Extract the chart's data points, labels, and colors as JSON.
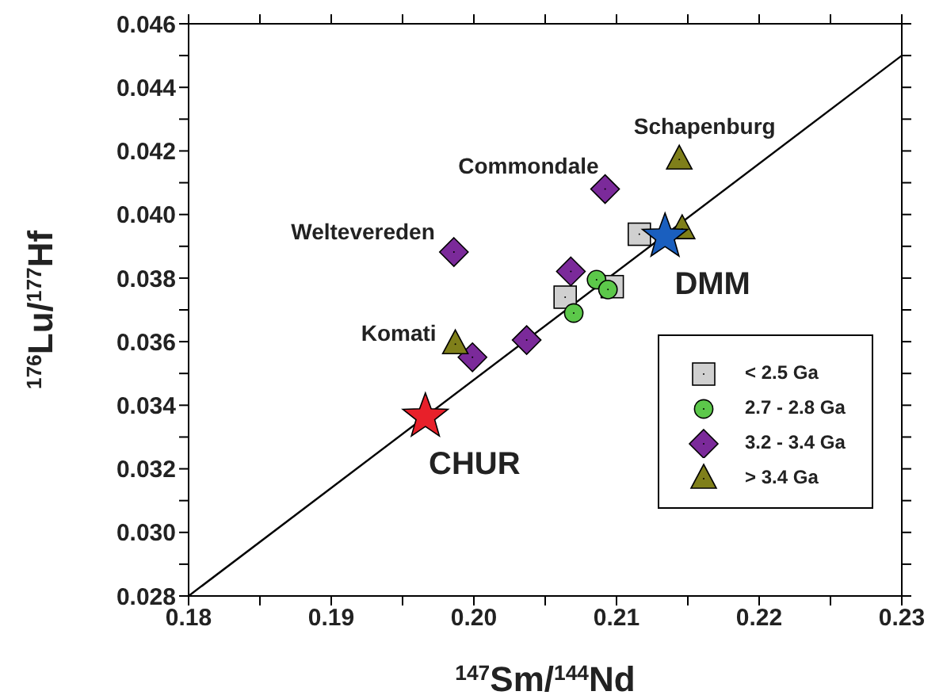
{
  "chart_data": {
    "type": "scatter",
    "xlabel": "$^{147}$Sm/$^{144}$Nd",
    "ylabel": "$^{176}$Lu/$^{177}$Hf",
    "xlim": [
      0.18,
      0.23
    ],
    "ylim": [
      0.028,
      0.046
    ],
    "xticks": [
      0.18,
      {
        "value": 0.185,
        "label": null
      },
      0.19,
      {
        "value": 0.195,
        "label": null
      },
      {
        "value": 0.2,
        "label": "0.20"
      },
      {
        "value": 0.205,
        "label": null
      },
      0.21,
      {
        "value": 0.215,
        "label": null
      },
      0.22,
      {
        "value": 0.225,
        "label": null
      },
      0.23
    ],
    "yticks": [
      0.028,
      {
        "value": 0.029,
        "label": null
      },
      {
        "value": 0.03,
        "label": "0.030"
      },
      {
        "value": 0.031,
        "label": null
      },
      0.032,
      {
        "value": 0.033,
        "label": null
      },
      0.034,
      {
        "value": 0.035,
        "label": null
      },
      0.036,
      {
        "value": 0.037,
        "label": null
      },
      0.038,
      {
        "value": 0.039,
        "label": null
      },
      {
        "value": 0.04,
        "label": "0.040"
      },
      {
        "value": 0.041,
        "label": null
      },
      0.042,
      {
        "value": 0.043,
        "label": null
      },
      0.044,
      {
        "value": 0.045,
        "label": null
      },
      0.046
    ],
    "grid": false,
    "legend": "bottom right",
    "series": [
      {
        "type": "line",
        "color": "#000000",
        "marker": "none",
        "x": [
          0.18,
          0.23
        ],
        "values": [
          0.028,
          0.045
        ]
      },
      {
        "name": "< 2.5 Ga",
        "marker": "square",
        "color": "#d0d0d0",
        "x": [
          0.2116,
          0.2064,
          0.2097
        ],
        "values": [
          0.03938,
          0.0374,
          0.03773
        ]
      },
      {
        "name": "2.7 - 2.8 Ga",
        "marker": "circle",
        "color": "#5cc84a",
        "x": [
          0.2086,
          0.2094,
          0.207
        ],
        "values": [
          0.03795,
          0.03764,
          0.0369
        ]
      },
      {
        "name": "3.2 - 3.4 Ga",
        "marker": "diamond",
        "color": "#7b2a9a",
        "x": [
          0.2092,
          0.1986,
          0.2068,
          0.2037,
          0.1999
        ],
        "values": [
          0.0408,
          0.03882,
          0.03821,
          0.03605,
          0.03551
        ]
      },
      {
        "name": "> 3.4 Ga",
        "marker": "triangle",
        "color": "#7f7f1a",
        "x": [
          0.2144,
          0.2146,
          0.1987
        ],
        "values": [
          0.04173,
          0.03954,
          0.03592
        ]
      },
      {
        "marker": "star",
        "color": "#e8202a",
        "x": [
          0.1966
        ],
        "values": [
          0.03364
        ]
      },
      {
        "marker": "star",
        "color": "#1a5fbf",
        "x": [
          0.2134
        ],
        "values": [
          0.0393
        ]
      }
    ],
    "annotations": [
      {
        "text": "Schapenburg",
        "x": 0.2144,
        "y": 0.04173
      },
      {
        "text": "Commondale",
        "x": 0.2092,
        "y": 0.0408
      },
      {
        "text": "Weltevereden",
        "x": 0.1986,
        "y": 0.03882
      },
      {
        "text": "Komati",
        "x": 0.1987,
        "y": 0.03592
      },
      {
        "text": "CHUR",
        "x": 0.1966,
        "y": 0.03364
      },
      {
        "text": "DMM",
        "x": 0.2134,
        "y": 0.0393
      }
    ]
  }
}
